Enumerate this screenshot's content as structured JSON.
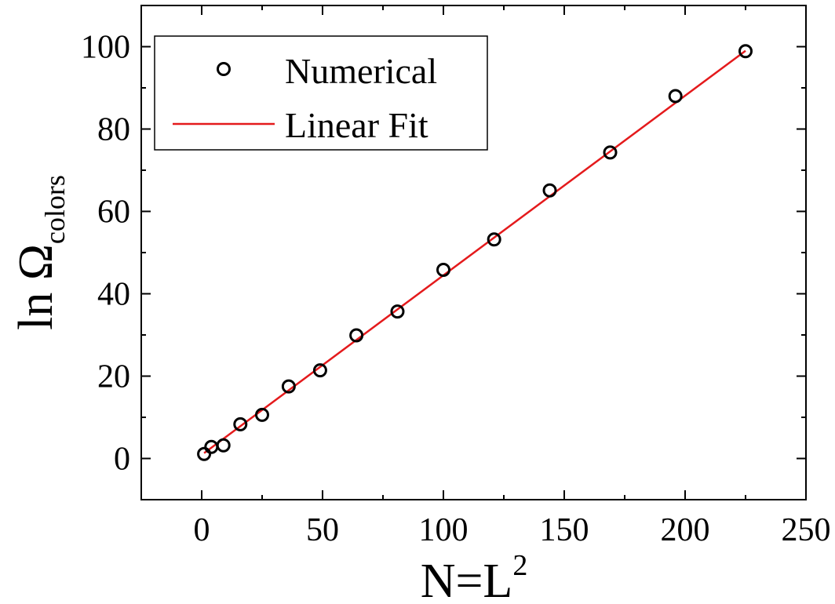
{
  "chart_data": {
    "type": "scatter",
    "xlabel": {
      "main": "N=L",
      "superscript": "2"
    },
    "ylabel": {
      "main": "ln Ω",
      "subscript": "colors"
    },
    "xlim": [
      -25,
      250
    ],
    "ylim": [
      -10,
      110
    ],
    "xticks": [
      0,
      50,
      100,
      150,
      200,
      250
    ],
    "yticks": [
      0,
      20,
      40,
      60,
      80,
      100
    ],
    "grid": false,
    "legend": {
      "position": "top-left"
    },
    "series": [
      {
        "name": "Numerical",
        "kind": "markers",
        "marker": "open-circle",
        "color": "#000000",
        "x": [
          1,
          4,
          9,
          16,
          25,
          36,
          49,
          64,
          81,
          100,
          121,
          144,
          169,
          196,
          225
        ],
        "y": [
          1.1,
          2.8,
          3.2,
          8.3,
          10.6,
          17.5,
          21.4,
          29.9,
          35.7,
          45.8,
          53.2,
          65.1,
          74.3,
          88.0,
          98.9
        ]
      },
      {
        "name": "Linear Fit",
        "kind": "line",
        "color": "#e41a1c",
        "x": [
          1,
          225
        ],
        "y": [
          1.3,
          99.0
        ]
      }
    ]
  }
}
